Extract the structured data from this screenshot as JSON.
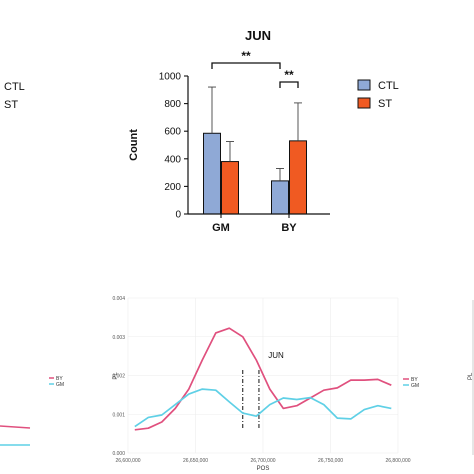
{
  "chart_data": [
    {
      "type": "bar",
      "title": "JUN",
      "ylabel": "Count",
      "xlabel": "",
      "categories": [
        "GM",
        "BY"
      ],
      "ylim": [
        0,
        1000
      ],
      "yticks": [
        0,
        200,
        400,
        600,
        800,
        1000
      ],
      "series": [
        {
          "name": "CTL",
          "color": "#8fa9d6",
          "values": [
            585,
            240
          ],
          "errors": [
            335,
            90
          ]
        },
        {
          "name": "ST",
          "color": "#f05a22",
          "values": [
            380,
            530
          ],
          "errors": [
            145,
            275
          ]
        }
      ],
      "significance": [
        {
          "label": "**",
          "from": "GM-CTL",
          "to": "BY-CTL"
        },
        {
          "label": "**",
          "from": "BY-CTL",
          "to": "BY-ST"
        }
      ],
      "legend_position": "right"
    },
    {
      "type": "line",
      "xlabel": "POS",
      "ylabel": "PL",
      "xlim": [
        26600000,
        26800000
      ],
      "ylim": [
        0,
        0.004
      ],
      "xticks": [
        "26,600,000",
        "26,650,000",
        "26,700,000",
        "26,750,000",
        "26,800,000"
      ],
      "yticks": [
        "0.000",
        "0.001",
        "0.002",
        "0.003",
        "0.004"
      ],
      "annotation": "JUN",
      "gene_region": [
        26685000,
        26697000
      ],
      "series": [
        {
          "name": "BY",
          "color": "#e0507e",
          "x": [
            26605000,
            26615000,
            26625000,
            26635000,
            26645000,
            26655000,
            26665000,
            26675000,
            26685000,
            26695000,
            26705000,
            26715000,
            26725000,
            26735000,
            26745000,
            26755000,
            26765000,
            26775000,
            26785000,
            26795000
          ],
          "y": [
            0.0006,
            0.00064,
            0.0008,
            0.00115,
            0.00165,
            0.0024,
            0.0031,
            0.00322,
            0.003,
            0.0024,
            0.00165,
            0.00115,
            0.00122,
            0.00142,
            0.00162,
            0.00168,
            0.00188,
            0.00188,
            0.0019,
            0.00175
          ]
        },
        {
          "name": "GM",
          "color": "#5fd0e6",
          "x": [
            26605000,
            26615000,
            26625000,
            26635000,
            26645000,
            26655000,
            26665000,
            26675000,
            26685000,
            26695000,
            26705000,
            26715000,
            26725000,
            26735000,
            26745000,
            26755000,
            26765000,
            26775000,
            26785000,
            26795000
          ],
          "y": [
            0.00068,
            0.00092,
            0.00098,
            0.00125,
            0.00152,
            0.00165,
            0.00162,
            0.00132,
            0.00103,
            0.00095,
            0.00125,
            0.00142,
            0.00138,
            0.00143,
            0.00125,
            0.0009,
            0.00088,
            0.00112,
            0.00122,
            0.00115
          ]
        }
      ]
    }
  ],
  "partial_left": {
    "legend_labels": [
      "CTL",
      "ST"
    ],
    "line_legend_labels": [
      "BY",
      "GM"
    ]
  },
  "partial_right": {
    "ylabel_fragment": "PL"
  }
}
